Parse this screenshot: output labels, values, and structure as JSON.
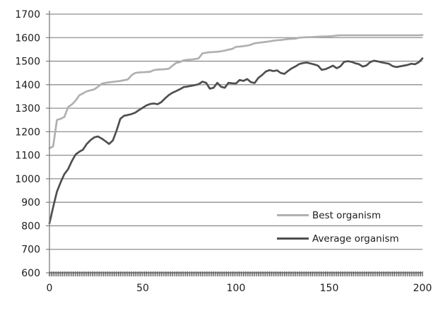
{
  "colors": {
    "background": "#ffffff",
    "gridline": "#8f8f8f",
    "axis": "#7d7d7d",
    "minor_tick": "#565656",
    "label_text": "#1c1c1c",
    "best_line": "#b0b0b0",
    "average_line": "#4f4f4f"
  },
  "chart_data": {
    "type": "line",
    "title": "",
    "xlabel": "",
    "ylabel": "",
    "xlim": [
      0,
      200
    ],
    "ylim": [
      600,
      1700
    ],
    "x_ticks": [
      0,
      50,
      100,
      150,
      200
    ],
    "y_ticks": [
      600,
      700,
      800,
      900,
      1000,
      1100,
      1200,
      1300,
      1400,
      1500,
      1600,
      1700
    ],
    "x_minor_tick_every": 1,
    "grid": "horizontal",
    "legend_position": "inside-lower-right",
    "x_step": 2,
    "series": [
      {
        "name": "Best organism",
        "color": "#b0b0b0",
        "values": [
          1130,
          1138,
          1250,
          1255,
          1263,
          1305,
          1316,
          1332,
          1355,
          1363,
          1372,
          1376,
          1380,
          1391,
          1404,
          1408,
          1410,
          1412,
          1414,
          1416,
          1419,
          1422,
          1440,
          1450,
          1452,
          1453,
          1454,
          1455,
          1462,
          1464,
          1465,
          1466,
          1468,
          1481,
          1493,
          1496,
          1504,
          1506,
          1507,
          1509,
          1512,
          1533,
          1536,
          1538,
          1539,
          1540,
          1542,
          1545,
          1549,
          1552,
          1561,
          1562,
          1564,
          1566,
          1570,
          1576,
          1578,
          1580,
          1582,
          1584,
          1587,
          1589,
          1590,
          1592,
          1594,
          1595,
          1596,
          1600,
          1601,
          1602,
          1602,
          1603,
          1604,
          1605,
          1605,
          1606,
          1607,
          1609,
          1610,
          1610,
          1610,
          1610,
          1610,
          1610,
          1610,
          1610,
          1610,
          1610,
          1610,
          1610,
          1610,
          1610,
          1610,
          1610,
          1610,
          1610,
          1610,
          1610,
          1610,
          1610,
          1611
        ]
      },
      {
        "name": "Average organism",
        "color": "#4f4f4f",
        "values": [
          810,
          880,
          945,
          985,
          1020,
          1041,
          1075,
          1103,
          1115,
          1124,
          1148,
          1164,
          1176,
          1180,
          1171,
          1160,
          1148,
          1163,
          1205,
          1255,
          1268,
          1271,
          1275,
          1281,
          1292,
          1302,
          1312,
          1318,
          1320,
          1317,
          1326,
          1342,
          1356,
          1366,
          1373,
          1381,
          1390,
          1392,
          1395,
          1398,
          1402,
          1413,
          1408,
          1383,
          1387,
          1408,
          1391,
          1387,
          1408,
          1406,
          1405,
          1420,
          1416,
          1424,
          1411,
          1407,
          1429,
          1441,
          1456,
          1462,
          1458,
          1461,
          1450,
          1446,
          1459,
          1470,
          1478,
          1488,
          1492,
          1494,
          1490,
          1486,
          1481,
          1463,
          1466,
          1473,
          1481,
          1470,
          1478,
          1497,
          1500,
          1497,
          1491,
          1487,
          1477,
          1482,
          1496,
          1502,
          1499,
          1495,
          1492,
          1489,
          1479,
          1475,
          1478,
          1481,
          1484,
          1489,
          1487,
          1495,
          1512
        ]
      }
    ]
  }
}
